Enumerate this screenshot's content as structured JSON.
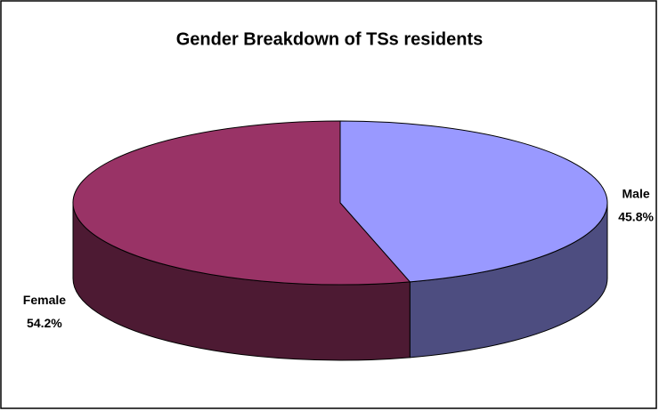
{
  "chart_data": {
    "type": "pie",
    "title": "Gender Breakdown of TSs residents",
    "categories": [
      "Male",
      "Female"
    ],
    "values": [
      45.8,
      54.2
    ],
    "value_labels": [
      "45.8%",
      "54.2%"
    ],
    "colors": [
      "#9999ff",
      "#993366"
    ],
    "side_colors": [
      "#4d4d80",
      "#4d1a33"
    ]
  }
}
